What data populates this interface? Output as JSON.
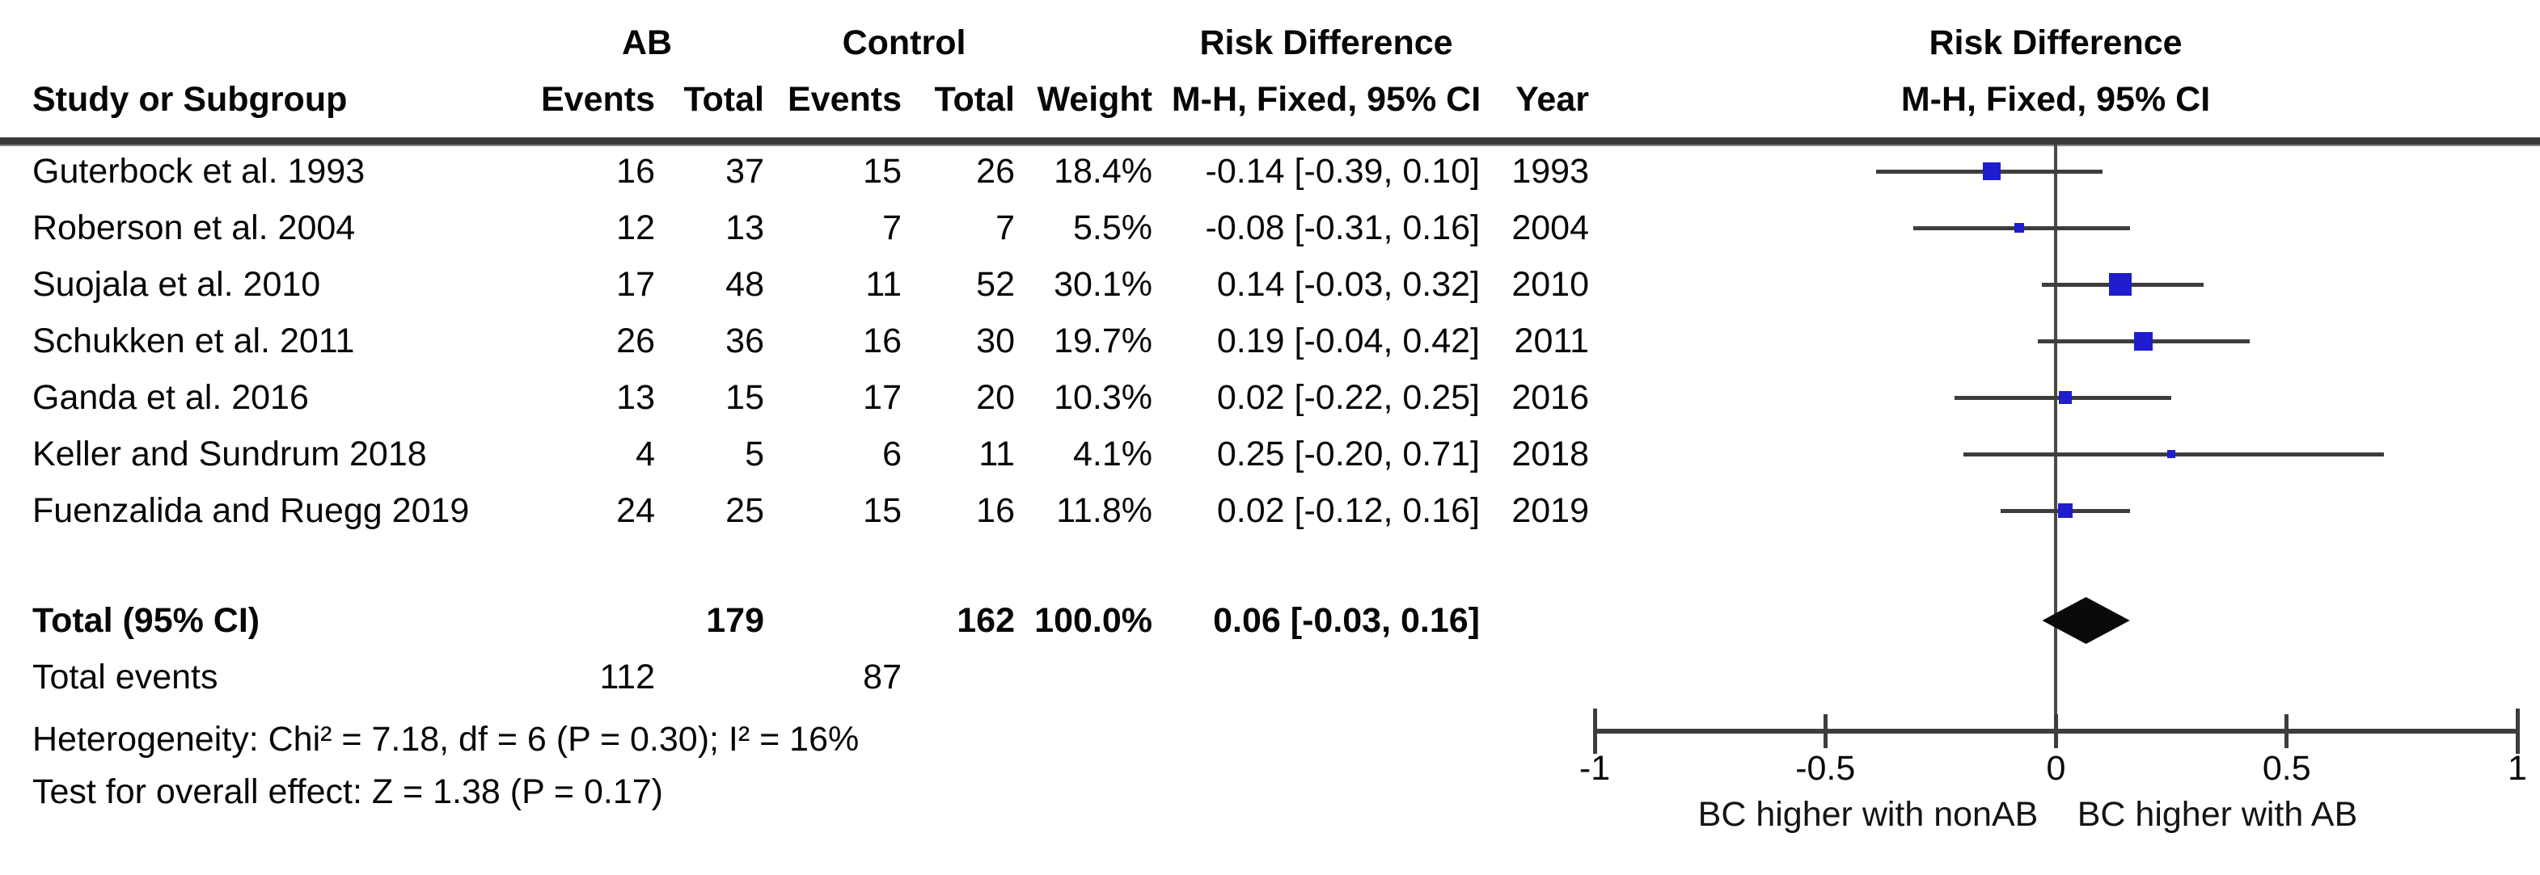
{
  "table": {
    "header": {
      "study_col": "Study or Subgroup",
      "group_ab": "AB",
      "group_control": "Control",
      "events_ab": "Events",
      "total_ab": "Total",
      "events_control": "Events",
      "total_control": "Total",
      "weight": "Weight",
      "effect": "Risk Difference",
      "effect_sub": "M-H, Fixed, 95% CI",
      "year": "Year"
    },
    "total_row": {
      "label": "Total (95% CI)",
      "ab_total": "179",
      "control_total": "162",
      "weight": "100.0%",
      "estimate": "0.06 [-0.03, 0.16]"
    },
    "total_events_row": {
      "label": "Total events",
      "ab_events": "112",
      "control_events": "87"
    },
    "heterogeneity": "Heterogeneity: Chi² = 7.18, df = 6 (P = 0.30); I² = 16%",
    "overall_effect": "Test for overall effect: Z = 1.38 (P = 0.17)"
  },
  "plot": {
    "title": "Risk Difference",
    "subtitle": "M-H, Fixed, 95% CI",
    "tick_values": [
      -1,
      -0.5,
      0,
      0.5,
      1
    ],
    "tick_labels": [
      "-1",
      "-0.5",
      "0",
      "0.5",
      "1"
    ],
    "xlabel_left": "BC higher with nonAB",
    "xlabel_right": "BC higher with AB",
    "colors": {
      "square": "#1e1ecc",
      "ci_line": "#3d3d3d",
      "diamond": "#0a0a0a",
      "axis": "#3d3d3d"
    }
  },
  "chart_data": {
    "type": "forest",
    "effect_measure": "Risk Difference (M-H, Fixed, 95% CI)",
    "xlim": [
      -1,
      1
    ],
    "studies": [
      {
        "label": "Guterbock et al. 1993",
        "ab_events": 16,
        "ab_total": 37,
        "control_events": 15,
        "control_total": 26,
        "weight_pct": 18.4,
        "weight_text": "18.4%",
        "rd": -0.14,
        "ci_low": -0.39,
        "ci_high": 0.1,
        "ci_text": "-0.14 [-0.39, 0.10]",
        "year": "1993"
      },
      {
        "label": "Roberson et al. 2004",
        "ab_events": 12,
        "ab_total": 13,
        "control_events": 7,
        "control_total": 7,
        "weight_pct": 5.5,
        "weight_text": "5.5%",
        "rd": -0.08,
        "ci_low": -0.31,
        "ci_high": 0.16,
        "ci_text": "-0.08 [-0.31, 0.16]",
        "year": "2004"
      },
      {
        "label": "Suojala et al. 2010",
        "ab_events": 17,
        "ab_total": 48,
        "control_events": 11,
        "control_total": 52,
        "weight_pct": 30.1,
        "weight_text": "30.1%",
        "rd": 0.14,
        "ci_low": -0.03,
        "ci_high": 0.32,
        "ci_text": "0.14 [-0.03, 0.32]",
        "year": "2010"
      },
      {
        "label": "Schukken et al. 2011",
        "ab_events": 26,
        "ab_total": 36,
        "control_events": 16,
        "control_total": 30,
        "weight_pct": 19.7,
        "weight_text": "19.7%",
        "rd": 0.19,
        "ci_low": -0.04,
        "ci_high": 0.42,
        "ci_text": "0.19 [-0.04, 0.42]",
        "year": "2011"
      },
      {
        "label": "Ganda et al. 2016",
        "ab_events": 13,
        "ab_total": 15,
        "control_events": 17,
        "control_total": 20,
        "weight_pct": 10.3,
        "weight_text": "10.3%",
        "rd": 0.02,
        "ci_low": -0.22,
        "ci_high": 0.25,
        "ci_text": "0.02 [-0.22, 0.25]",
        "year": "2016"
      },
      {
        "label": "Keller and Sundrum 2018",
        "ab_events": 4,
        "ab_total": 5,
        "control_events": 6,
        "control_total": 11,
        "weight_pct": 4.1,
        "weight_text": "4.1%",
        "rd": 0.25,
        "ci_low": -0.2,
        "ci_high": 0.71,
        "ci_text": "0.25 [-0.20, 0.71]",
        "year": "2018"
      },
      {
        "label": "Fuenzalida and Ruegg 2019",
        "ab_events": 24,
        "ab_total": 25,
        "control_events": 15,
        "control_total": 16,
        "weight_pct": 11.8,
        "weight_text": "11.8%",
        "rd": 0.02,
        "ci_low": -0.12,
        "ci_high": 0.16,
        "ci_text": "0.02 [-0.12, 0.16]",
        "year": "2019"
      }
    ],
    "total": {
      "rd": 0.06,
      "ci_low": -0.03,
      "ci_high": 0.16,
      "ab_total": 179,
      "control_total": 162,
      "weight_pct": 100.0,
      "ab_events": 112,
      "control_events": 87
    },
    "heterogeneity": {
      "chi2": 7.18,
      "df": 6,
      "p": 0.3,
      "i2_pct": 16
    },
    "overall_effect": {
      "z": 1.38,
      "p": 0.17
    }
  }
}
